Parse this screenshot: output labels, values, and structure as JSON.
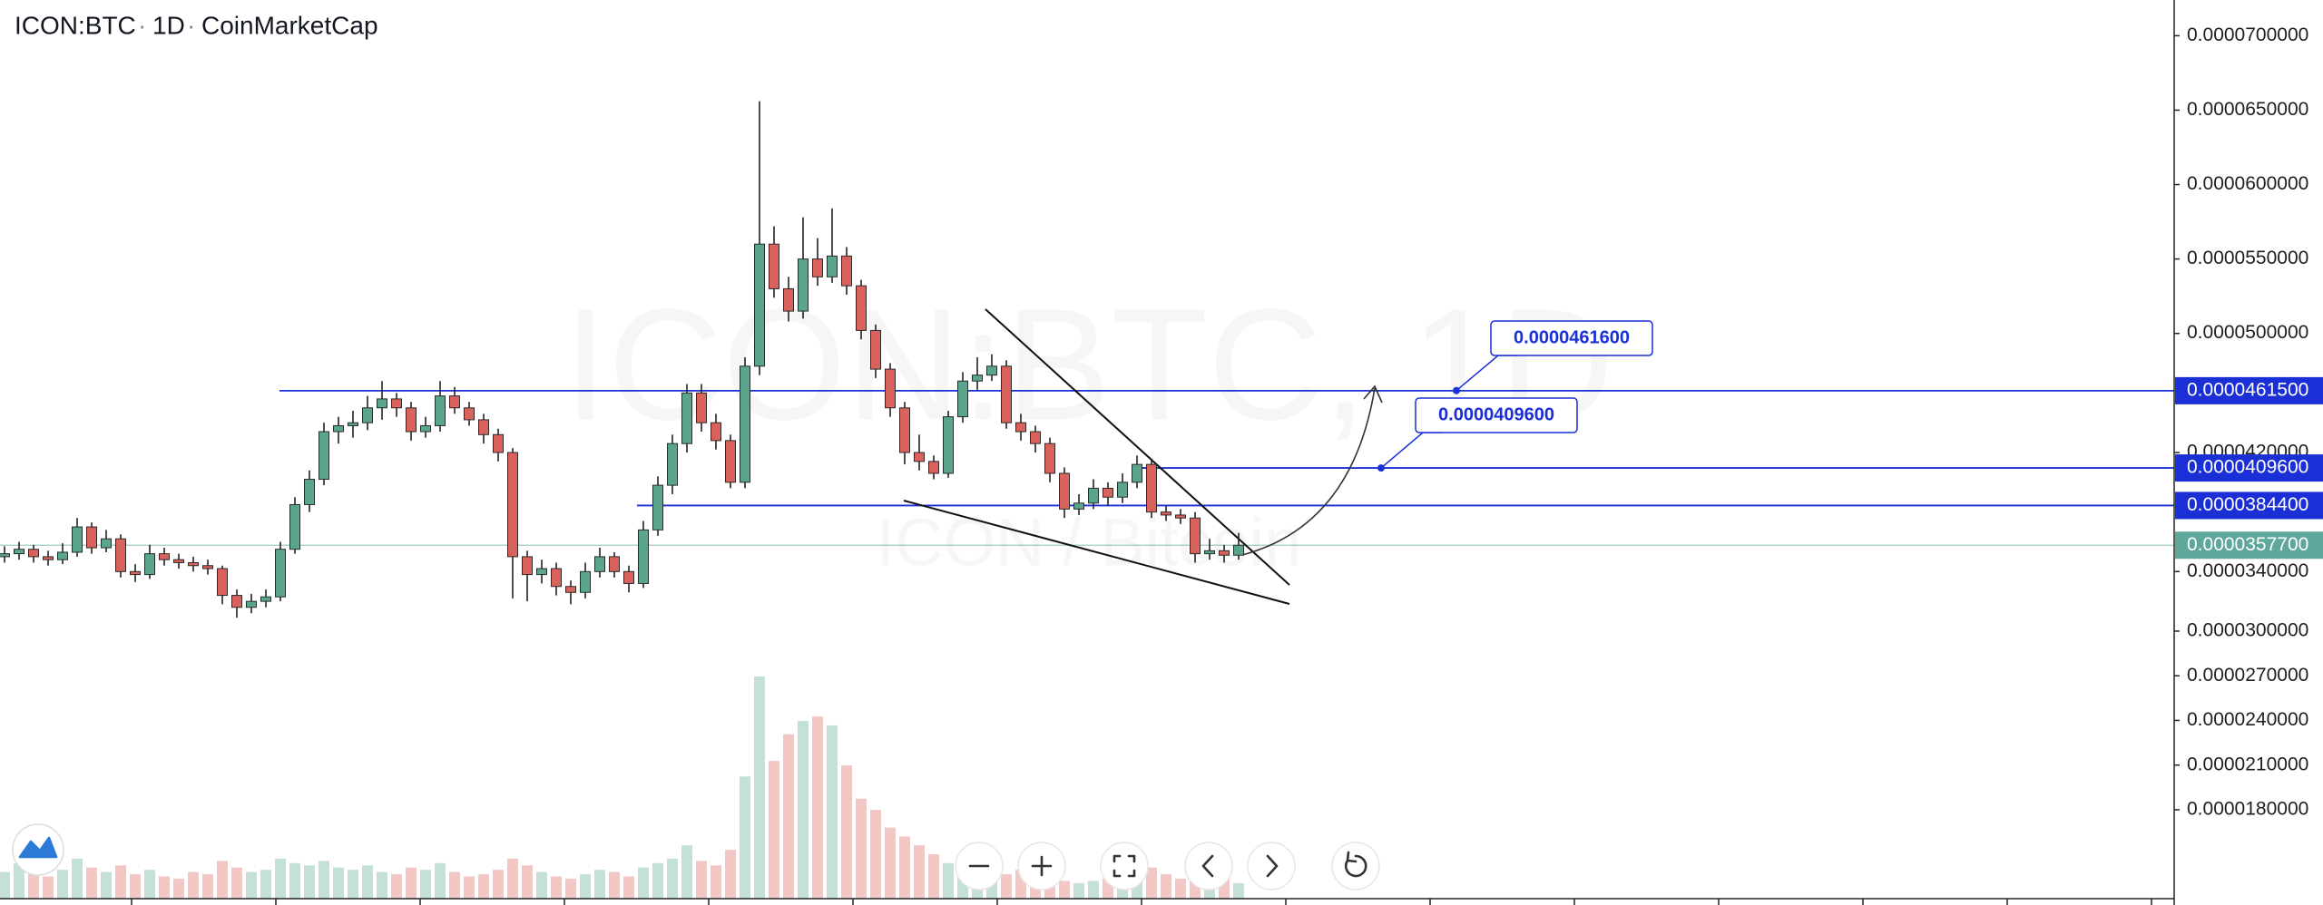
{
  "chart_data": {
    "type": "candlestick",
    "symbol": "ICON:BTC",
    "interval": "1D",
    "source": "CoinMarketCap",
    "watermark": "ICON:BTC, 1D",
    "watermark_sub": "ICON / Bitcoin",
    "up_color": "#5aa58e",
    "down_color": "#d9625d",
    "grid": false,
    "ylim": [
      1.16e-05,
      7.24e-05
    ],
    "vlim": [
      0,
      100
    ],
    "yticks": [
      {
        "value": 7e-05,
        "label": "0.0000700000"
      },
      {
        "value": 6.5e-05,
        "label": "0.0000650000"
      },
      {
        "value": 6e-05,
        "label": "0.0000600000"
      },
      {
        "value": 5.5e-05,
        "label": "0.0000550000"
      },
      {
        "value": 5e-05,
        "label": "0.0000500000"
      },
      {
        "value": 4.2e-05,
        "label": "0.0000420000"
      },
      {
        "value": 3.4e-05,
        "label": "0.0000340000"
      },
      {
        "value": 3e-05,
        "label": "0.0000300000"
      },
      {
        "value": 2.7e-05,
        "label": "0.0000270000"
      },
      {
        "value": 2.4e-05,
        "label": "0.0000240000"
      },
      {
        "value": 2.1e-05,
        "label": "0.0000210000"
      },
      {
        "value": 1.8e-05,
        "label": "0.0000180000"
      }
    ],
    "open": [
      3.5e-05,
      3.52e-05,
      3.55e-05,
      3.5e-05,
      3.48e-05,
      3.53e-05,
      3.7e-05,
      3.56e-05,
      3.62e-05,
      3.4e-05,
      3.38e-05,
      3.52e-05,
      3.48e-05,
      3.46e-05,
      3.44e-05,
      3.42e-05,
      3.24e-05,
      3.16e-05,
      3.2e-05,
      3.23e-05,
      3.55e-05,
      3.85e-05,
      4.02e-05,
      4.34e-05,
      4.38e-05,
      4.4e-05,
      4.5e-05,
      4.56e-05,
      4.5e-05,
      4.34e-05,
      4.38e-05,
      4.58e-05,
      4.5e-05,
      4.42e-05,
      4.32e-05,
      4.2e-05,
      3.5e-05,
      3.38e-05,
      3.42e-05,
      3.3e-05,
      3.26e-05,
      3.4e-05,
      3.5e-05,
      3.4e-05,
      3.32e-05,
      3.68e-05,
      3.98e-05,
      4.26e-05,
      4.6e-05,
      4.4e-05,
      4.28e-05,
      4e-05,
      4.78e-05,
      5.6e-05,
      5.3e-05,
      5.15e-05,
      5.5e-05,
      5.38e-05,
      5.52e-05,
      5.32e-05,
      5.02e-05,
      4.76e-05,
      4.5e-05,
      4.2e-05,
      4.14e-05,
      4.06e-05,
      4.44e-05,
      4.68e-05,
      4.72e-05,
      4.78e-05,
      4.4e-05,
      4.34e-05,
      4.26e-05,
      4.06e-05,
      3.82e-05,
      3.86e-05,
      3.96e-05,
      3.9e-05,
      4e-05,
      4.12e-05,
      3.8e-05,
      3.78e-05,
      3.76e-05,
      3.52e-05,
      3.54e-05,
      3.51e-05
    ],
    "high": [
      3.57e-05,
      3.6e-05,
      3.58e-05,
      3.54e-05,
      3.59e-05,
      3.76e-05,
      3.73e-05,
      3.68e-05,
      3.65e-05,
      3.45e-05,
      3.58e-05,
      3.56e-05,
      3.52e-05,
      3.5e-05,
      3.48e-05,
      3.44e-05,
      3.28e-05,
      3.25e-05,
      3.28e-05,
      3.6e-05,
      3.9e-05,
      4.08e-05,
      4.4e-05,
      4.44e-05,
      4.48e-05,
      4.58e-05,
      4.68e-05,
      4.6e-05,
      4.54e-05,
      4.44e-05,
      4.68e-05,
      4.64e-05,
      4.54e-05,
      4.46e-05,
      4.36e-05,
      4.23e-05,
      3.54e-05,
      3.48e-05,
      3.46e-05,
      3.34e-05,
      3.46e-05,
      3.56e-05,
      3.53e-05,
      3.44e-05,
      3.74e-05,
      4.04e-05,
      4.32e-05,
      4.66e-05,
      4.66e-05,
      4.46e-05,
      4.32e-05,
      4.84e-05,
      6.56e-05,
      5.72e-05,
      5.38e-05,
      5.78e-05,
      5.64e-05,
      5.84e-05,
      5.58e-05,
      5.36e-05,
      5.06e-05,
      4.8e-05,
      4.54e-05,
      4.32e-05,
      4.18e-05,
      4.48e-05,
      4.74e-05,
      4.84e-05,
      4.86e-05,
      4.82e-05,
      4.46e-05,
      4.38e-05,
      4.3e-05,
      4.1e-05,
      3.92e-05,
      4.02e-05,
      4e-05,
      4.06e-05,
      4.18e-05,
      4.16e-05,
      3.84e-05,
      3.82e-05,
      3.8e-05,
      3.62e-05,
      3.58e-05,
      3.66e-05
    ],
    "low": [
      3.46e-05,
      3.48e-05,
      3.46e-05,
      3.44e-05,
      3.45e-05,
      3.5e-05,
      3.52e-05,
      3.53e-05,
      3.36e-05,
      3.33e-05,
      3.35e-05,
      3.44e-05,
      3.42e-05,
      3.4e-05,
      3.38e-05,
      3.18e-05,
      3.09e-05,
      3.12e-05,
      3.16e-05,
      3.2e-05,
      3.52e-05,
      3.8e-05,
      3.98e-05,
      4.26e-05,
      4.3e-05,
      4.35e-05,
      4.42e-05,
      4.44e-05,
      4.28e-05,
      4.3e-05,
      4.34e-05,
      4.46e-05,
      4.38e-05,
      4.26e-05,
      4.14e-05,
      3.22e-05,
      3.2e-05,
      3.32e-05,
      3.24e-05,
      3.18e-05,
      3.22e-05,
      3.36e-05,
      3.36e-05,
      3.26e-05,
      3.29e-05,
      3.64e-05,
      3.92e-05,
      4.2e-05,
      4.34e-05,
      4.22e-05,
      3.96e-05,
      3.96e-05,
      4.72e-05,
      5.24e-05,
      5.08e-05,
      5.1e-05,
      5.32e-05,
      5.34e-05,
      5.26e-05,
      4.96e-05,
      4.7e-05,
      4.44e-05,
      4.12e-05,
      4.08e-05,
      4.02e-05,
      4.03e-05,
      4.4e-05,
      4.62e-05,
      4.68e-05,
      4.36e-05,
      4.28e-05,
      4.2e-05,
      4e-05,
      3.76e-05,
      3.78e-05,
      3.82e-05,
      3.84e-05,
      3.86e-05,
      3.96e-05,
      3.76e-05,
      3.74e-05,
      3.72e-05,
      3.46e-05,
      3.48e-05,
      3.46e-05,
      3.48e-05
    ],
    "close": [
      3.52e-05,
      3.55e-05,
      3.5e-05,
      3.48e-05,
      3.53e-05,
      3.7e-05,
      3.56e-05,
      3.62e-05,
      3.4e-05,
      3.38e-05,
      3.52e-05,
      3.48e-05,
      3.46e-05,
      3.44e-05,
      3.42e-05,
      3.24e-05,
      3.16e-05,
      3.2e-05,
      3.23e-05,
      3.55e-05,
      3.85e-05,
      4.02e-05,
      4.34e-05,
      4.38e-05,
      4.4e-05,
      4.5e-05,
      4.56e-05,
      4.5e-05,
      4.34e-05,
      4.38e-05,
      4.58e-05,
      4.5e-05,
      4.42e-05,
      4.32e-05,
      4.2e-05,
      3.5e-05,
      3.38e-05,
      3.42e-05,
      3.3e-05,
      3.26e-05,
      3.4e-05,
      3.5e-05,
      3.4e-05,
      3.32e-05,
      3.68e-05,
      3.98e-05,
      4.26e-05,
      4.6e-05,
      4.4e-05,
      4.28e-05,
      4e-05,
      4.78e-05,
      5.6e-05,
      5.3e-05,
      5.15e-05,
      5.5e-05,
      5.38e-05,
      5.52e-05,
      5.32e-05,
      5.02e-05,
      4.76e-05,
      4.5e-05,
      4.2e-05,
      4.14e-05,
      4.06e-05,
      4.44e-05,
      4.68e-05,
      4.72e-05,
      4.78e-05,
      4.4e-05,
      4.34e-05,
      4.26e-05,
      4.06e-05,
      3.82e-05,
      3.86e-05,
      3.96e-05,
      3.9e-05,
      4e-05,
      4.12e-05,
      3.8e-05,
      3.78e-05,
      3.76e-05,
      3.52e-05,
      3.54e-05,
      3.51e-05,
      3.577e-05
    ],
    "volume": [
      12,
      16,
      14,
      10,
      13,
      18,
      14,
      12,
      15,
      11,
      13,
      10,
      9,
      12,
      11,
      17,
      14,
      12,
      13,
      18,
      16,
      15,
      17,
      14,
      13,
      15,
      12,
      11,
      14,
      13,
      16,
      12,
      10,
      11,
      13,
      18,
      15,
      12,
      10,
      9,
      11,
      13,
      12,
      10,
      14,
      16,
      18,
      24,
      17,
      15,
      22,
      55,
      100,
      62,
      74,
      80,
      82,
      78,
      60,
      45,
      40,
      32,
      28,
      24,
      20,
      16,
      14,
      12,
      10,
      11,
      13,
      12,
      10,
      8,
      7,
      8,
      9,
      10,
      12,
      14,
      11,
      9,
      10,
      8,
      9,
      7
    ],
    "hlines": [
      {
        "value": 4.615e-05,
        "label": "0.0000461500",
        "color": "#1a2fd6"
      },
      {
        "value": 4.096e-05,
        "label": "0.0000409600",
        "color": "#1a2fd6"
      },
      {
        "value": 3.844e-05,
        "label": "0.0000384400",
        "color": "#1a2fd6"
      },
      {
        "value": 3.577e-05,
        "label": "0.0000357700",
        "color": "#5fa79b"
      }
    ],
    "callouts": [
      {
        "value": 4.616e-05,
        "label": "0.0000461600"
      },
      {
        "value": 4.096e-05,
        "label": "0.0000409600"
      }
    ]
  }
}
